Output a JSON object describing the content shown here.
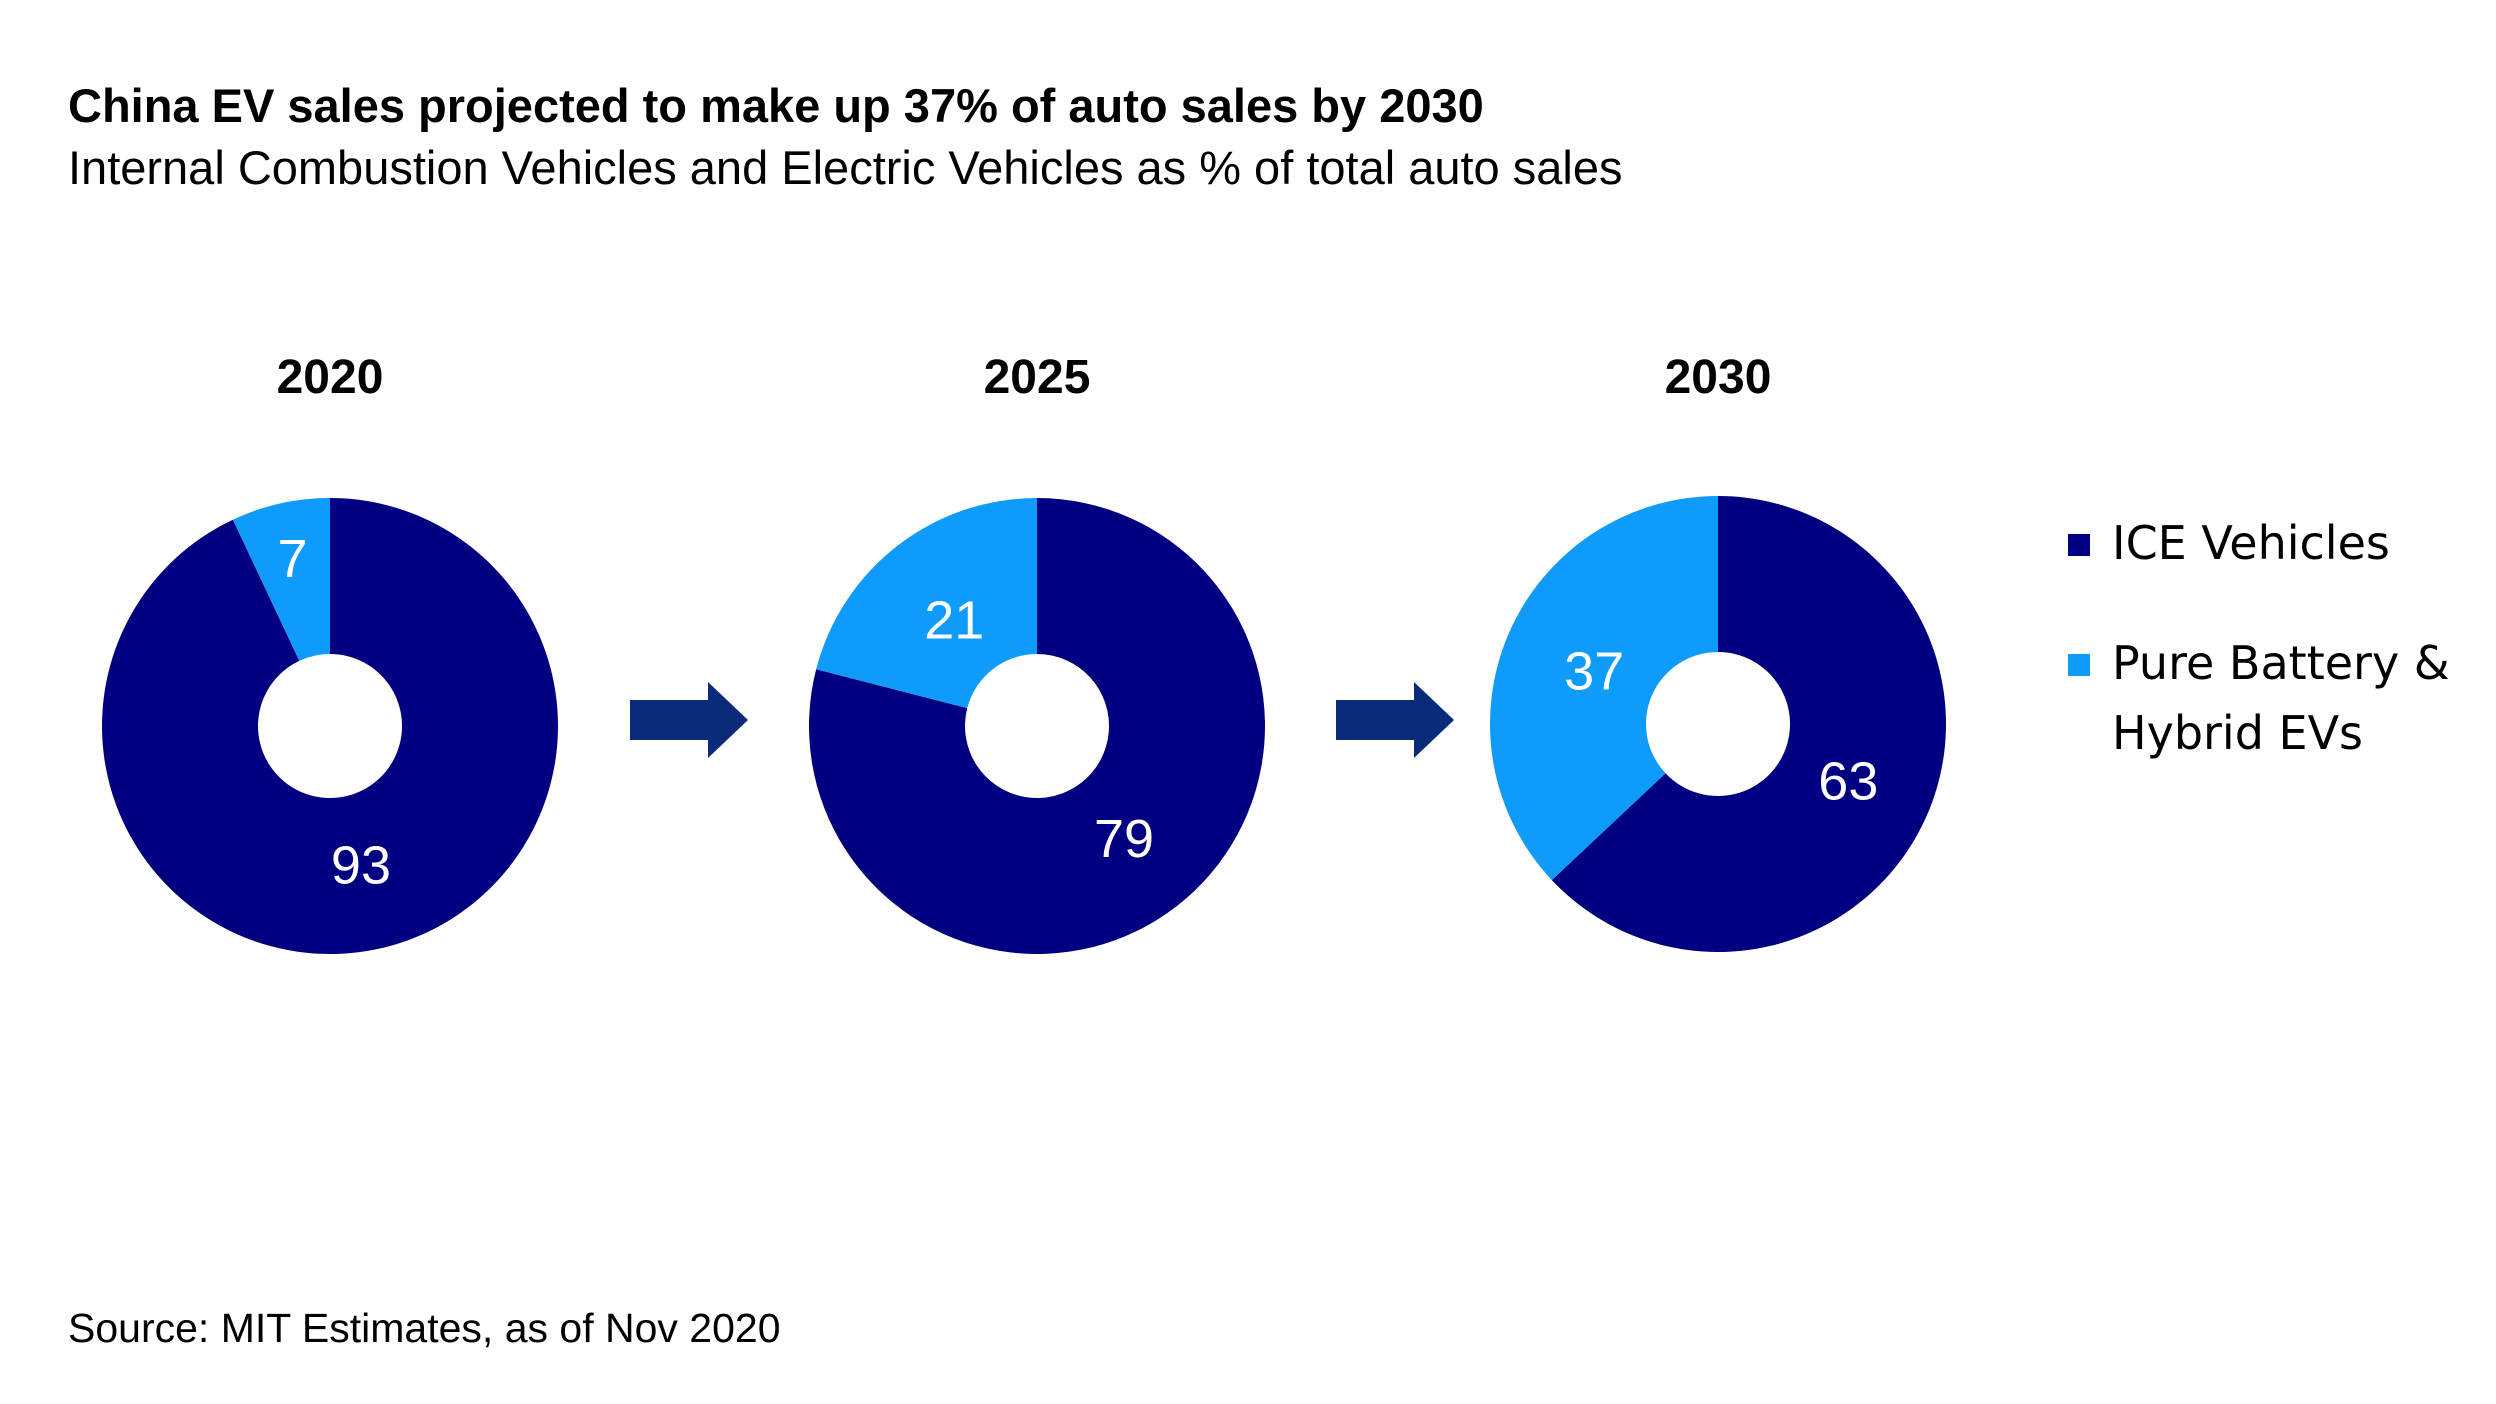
{
  "title": "China EV sales projected to make up 37% of auto sales by 2030",
  "subtitle": "Internal Combustion Vehicles and Electric Vehicles as % of total auto sales",
  "source": "Source: MIT Estimates, as of Nov 2020",
  "colors": {
    "ice": "#000080",
    "ev": "#0F9BFA",
    "arrow": "#0A2A7A"
  },
  "arrow_icon": "right-arrow-icon",
  "chart_data": [
    {
      "type": "pie",
      "style": "donut",
      "title": "2020",
      "labels": [
        "ICE Vehicles",
        "Pure Battery & Hybrid EVs"
      ],
      "values": [
        93,
        7
      ]
    },
    {
      "type": "pie",
      "style": "donut",
      "title": "2025",
      "labels": [
        "ICE Vehicles",
        "Pure Battery & Hybrid EVs"
      ],
      "values": [
        79,
        21
      ]
    },
    {
      "type": "pie",
      "style": "donut",
      "title": "2030",
      "labels": [
        "ICE Vehicles",
        "Pure Battery & Hybrid EVs"
      ],
      "values": [
        63,
        37
      ]
    }
  ],
  "legend": {
    "placement": "right",
    "items": [
      {
        "label": "ICE Vehicles",
        "color": "#000080"
      },
      {
        "label": "Pure Battery & Hybrid EVs",
        "color": "#0F9BFA"
      }
    ]
  }
}
